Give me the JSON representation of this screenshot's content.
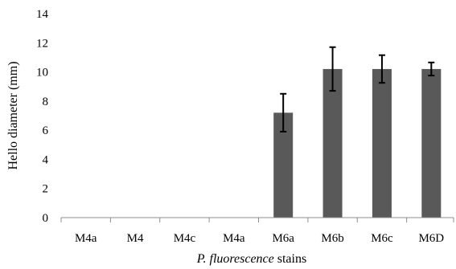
{
  "chart_data": {
    "type": "bar",
    "categories": [
      "M4a",
      "M4",
      "M4c",
      "M4a",
      "M6a",
      "M6b",
      "M6c",
      "M6D"
    ],
    "values": [
      0,
      0,
      0,
      0,
      7.2,
      10.2,
      10.2,
      10.2
    ],
    "errors": [
      0,
      0,
      0,
      0,
      1.3,
      1.5,
      0.95,
      0.45
    ],
    "ylabel": "Hello diameter (mm)",
    "xlabel_italic": "P. fluorescence",
    "xlabel_rest": " stains",
    "ylim": [
      0,
      14
    ],
    "yticks": [
      0,
      2,
      4,
      6,
      8,
      10,
      12,
      14
    ],
    "bar_color": "#595959",
    "grid": false
  }
}
